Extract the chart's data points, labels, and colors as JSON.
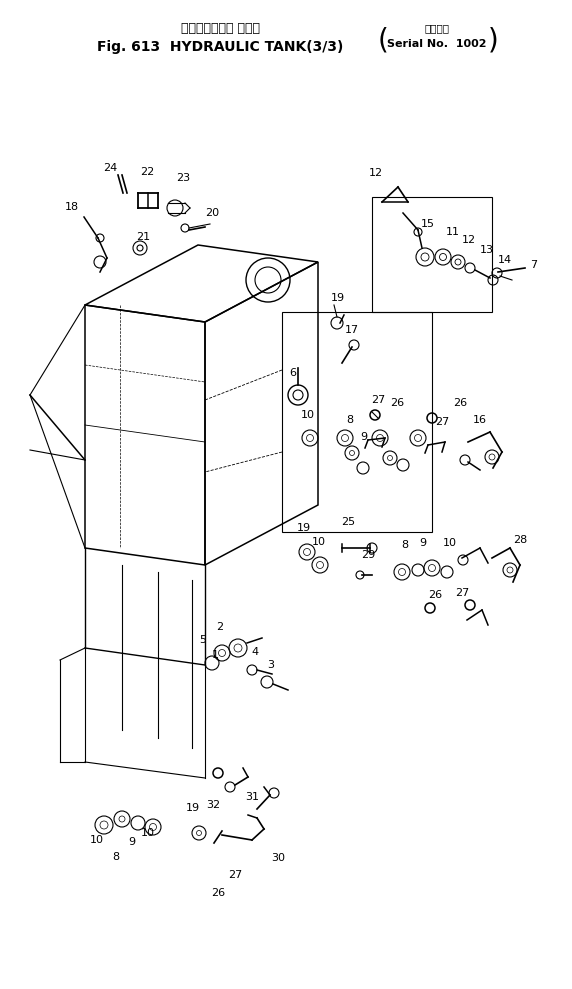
{
  "title_line1": "ハイドロリック タンク",
  "title_line2": "Fig. 613  HYDRAULIC TANK(3/3)",
  "serial_line1": "適用号機",
  "serial_line2": "Serial No.  1002",
  "bg_color": "#ffffff",
  "line_color": "#000000",
  "label_color": "#000000",
  "fig_width": 5.72,
  "fig_height": 9.89,
  "dpi": 100
}
